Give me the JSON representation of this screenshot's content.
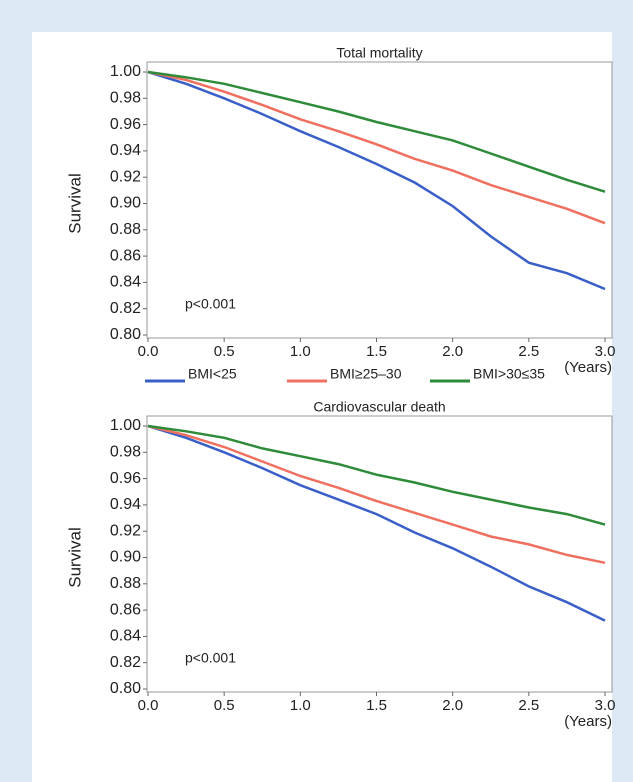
{
  "chart_data": [
    {
      "type": "line",
      "title": "Total mortality",
      "y_label": "Survival",
      "x_label": "(Years)",
      "annotation": "p<0.001",
      "x": [
        0,
        0.25,
        0.5,
        0.75,
        1.0,
        1.25,
        1.5,
        1.75,
        2.0,
        2.25,
        2.5,
        2.75,
        3.0
      ],
      "xlim": [
        0,
        3
      ],
      "ylim": [
        0.8,
        1.0
      ],
      "xticks": [
        {
          "value": 0,
          "label": "0.0"
        },
        {
          "value": 0.5,
          "label": "0.5"
        },
        {
          "value": 1,
          "label": "1.0"
        },
        {
          "value": 1.5,
          "label": "1.5"
        },
        {
          "value": 2,
          "label": "2.0"
        },
        {
          "value": 2.5,
          "label": "2.5"
        },
        {
          "value": 3,
          "label": "3.0"
        }
      ],
      "yticks": [
        {
          "value": 0.8,
          "label": "0.80"
        },
        {
          "value": 0.82,
          "label": "0.82"
        },
        {
          "value": 0.84,
          "label": "0.84"
        },
        {
          "value": 0.86,
          "label": "0.86"
        },
        {
          "value": 0.88,
          "label": "0.88"
        },
        {
          "value": 0.9,
          "label": "0.90"
        },
        {
          "value": 0.92,
          "label": "0.92"
        },
        {
          "value": 0.94,
          "label": "0.94"
        },
        {
          "value": 0.96,
          "label": "0.96"
        },
        {
          "value": 0.98,
          "label": "0.98"
        },
        {
          "value": 1.0,
          "label": "1.00"
        }
      ],
      "legend": "below",
      "series": [
        {
          "name": "BMI<25",
          "color": "#3a5fc8",
          "values": [
            1.0,
            0.991,
            0.98,
            0.968,
            0.955,
            0.943,
            0.93,
            0.916,
            0.898,
            0.875,
            0.855,
            0.847,
            0.835
          ]
        },
        {
          "name": "BMI≥25–30",
          "color": "#f07060",
          "values": [
            1.0,
            0.994,
            0.985,
            0.975,
            0.964,
            0.955,
            0.945,
            0.934,
            0.925,
            0.914,
            0.905,
            0.896,
            0.885
          ]
        },
        {
          "name": "BMI>30≤35",
          "color": "#2e8b3a",
          "values": [
            1.0,
            0.996,
            0.991,
            0.984,
            0.977,
            0.97,
            0.962,
            0.955,
            0.948,
            0.938,
            0.928,
            0.918,
            0.909
          ]
        }
      ]
    },
    {
      "type": "line",
      "title": "Cardiovascular death",
      "y_label": "Survival",
      "x_label": "(Years)",
      "annotation": "p<0.001",
      "x": [
        0,
        0.25,
        0.5,
        0.75,
        1.0,
        1.25,
        1.5,
        1.75,
        2.0,
        2.25,
        2.5,
        2.75,
        3.0
      ],
      "xlim": [
        0,
        3
      ],
      "ylim": [
        0.8,
        1.0
      ],
      "xticks": [
        {
          "value": 0,
          "label": "0.0"
        },
        {
          "value": 0.5,
          "label": "0.5"
        },
        {
          "value": 1,
          "label": "1.0"
        },
        {
          "value": 1.5,
          "label": "1.5"
        },
        {
          "value": 2,
          "label": "2.0"
        },
        {
          "value": 2.5,
          "label": "2.5"
        },
        {
          "value": 3,
          "label": "3.0"
        }
      ],
      "yticks": [
        {
          "value": 0.8,
          "label": "0.80"
        },
        {
          "value": 0.82,
          "label": "0.82"
        },
        {
          "value": 0.84,
          "label": "0.84"
        },
        {
          "value": 0.86,
          "label": "0.86"
        },
        {
          "value": 0.88,
          "label": "0.88"
        },
        {
          "value": 0.9,
          "label": "0.90"
        },
        {
          "value": 0.92,
          "label": "0.92"
        },
        {
          "value": 0.94,
          "label": "0.94"
        },
        {
          "value": 0.96,
          "label": "0.96"
        },
        {
          "value": 0.98,
          "label": "0.98"
        },
        {
          "value": 1.0,
          "label": "1.00"
        }
      ],
      "series": [
        {
          "color": "#3a5fc8",
          "values": [
            1.0,
            0.991,
            0.98,
            0.968,
            0.955,
            0.944,
            0.933,
            0.919,
            0.907,
            0.893,
            0.878,
            0.866,
            0.852
          ]
        },
        {
          "color": "#f07060",
          "values": [
            1.0,
            0.993,
            0.984,
            0.973,
            0.962,
            0.953,
            0.943,
            0.934,
            0.925,
            0.916,
            0.91,
            0.902,
            0.896
          ]
        },
        {
          "color": "#2e8b3a",
          "values": [
            1.0,
            0.996,
            0.991,
            0.983,
            0.977,
            0.971,
            0.963,
            0.957,
            0.95,
            0.944,
            0.938,
            0.933,
            0.925
          ]
        }
      ]
    }
  ]
}
